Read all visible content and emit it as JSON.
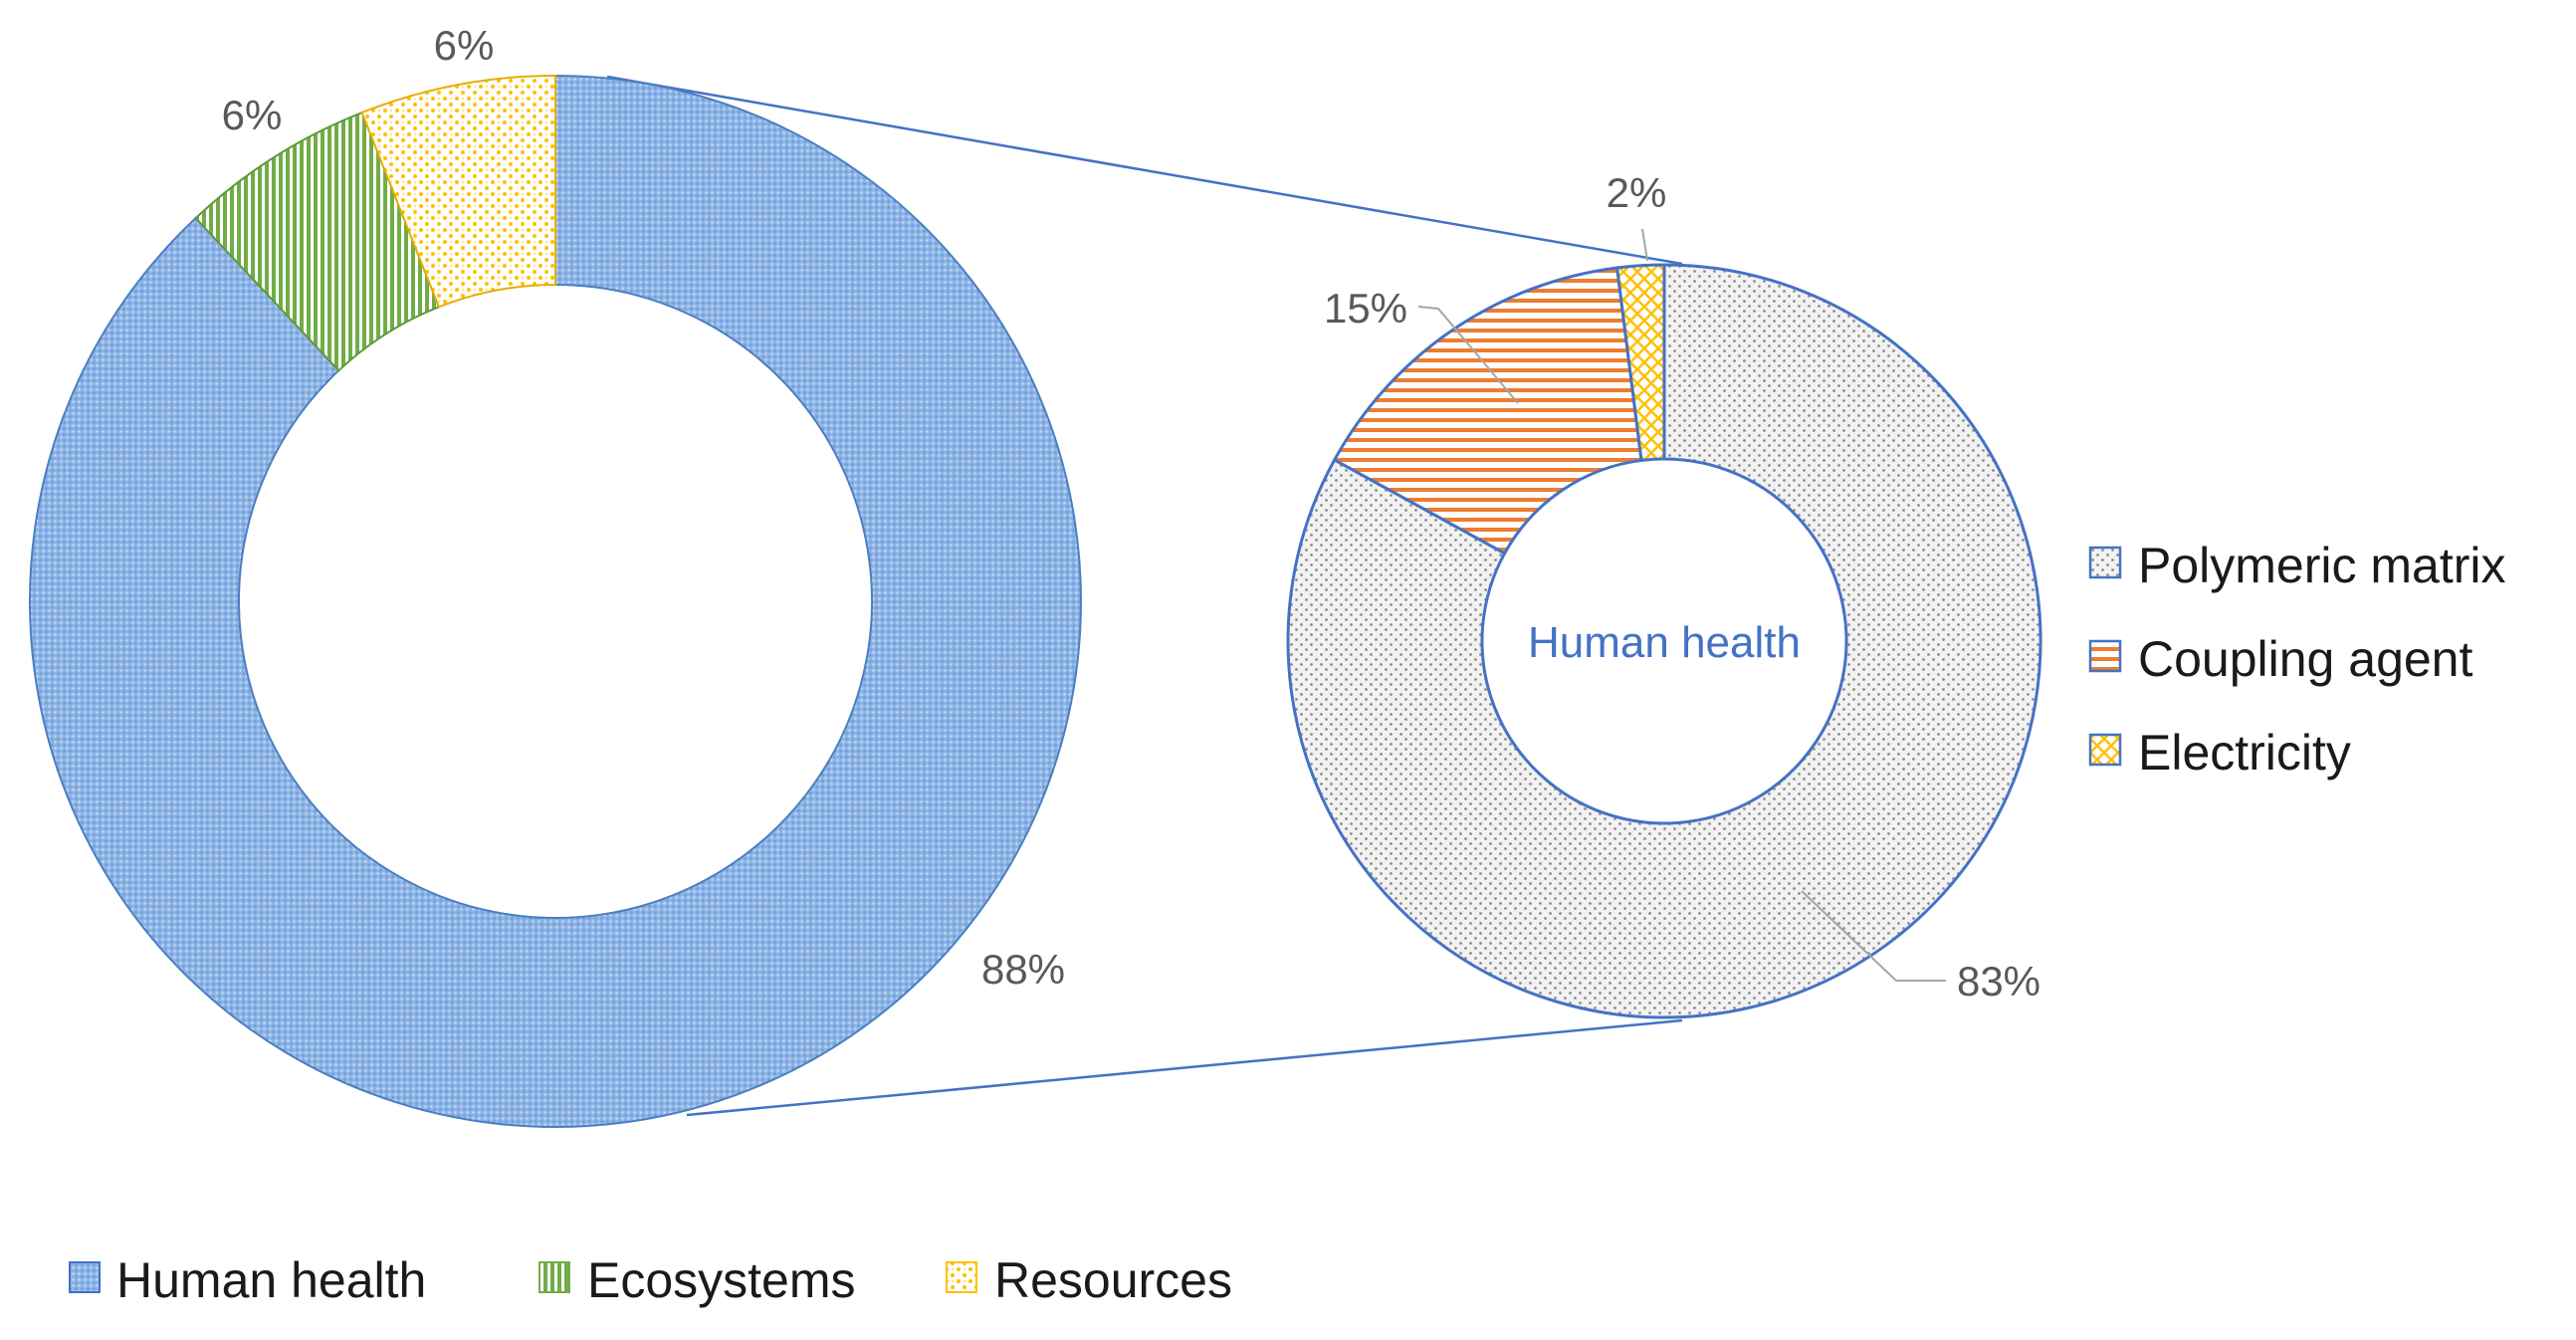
{
  "chart_data": [
    {
      "type": "pie",
      "variant": "doughnut",
      "categories": [
        "Human health",
        "Ecosystems",
        "Resources"
      ],
      "values": [
        88,
        6,
        6
      ],
      "data_labels": [
        "88%",
        "6%",
        "6%"
      ],
      "colors": [
        "#5b9bd5",
        "#70ad47",
        "#ffc000"
      ],
      "patterns": [
        "fine-dots",
        "vertical-stripes",
        "dots"
      ],
      "legend": "bottom"
    },
    {
      "type": "pie",
      "variant": "doughnut",
      "center_label": "Human health",
      "categories": [
        "Polymeric matrix",
        "Coupling agent",
        "Electricity"
      ],
      "values": [
        83,
        15,
        2
      ],
      "data_labels": [
        "83%",
        "15%",
        "2%"
      ],
      "colors": [
        "#a5a5a5",
        "#ed7d31",
        "#ffc000"
      ],
      "patterns": [
        "dots",
        "horizontal-stripes",
        "crosshatch"
      ],
      "outline": "#4472c4",
      "legend": "right",
      "breakout_of": "Human health"
    }
  ]
}
